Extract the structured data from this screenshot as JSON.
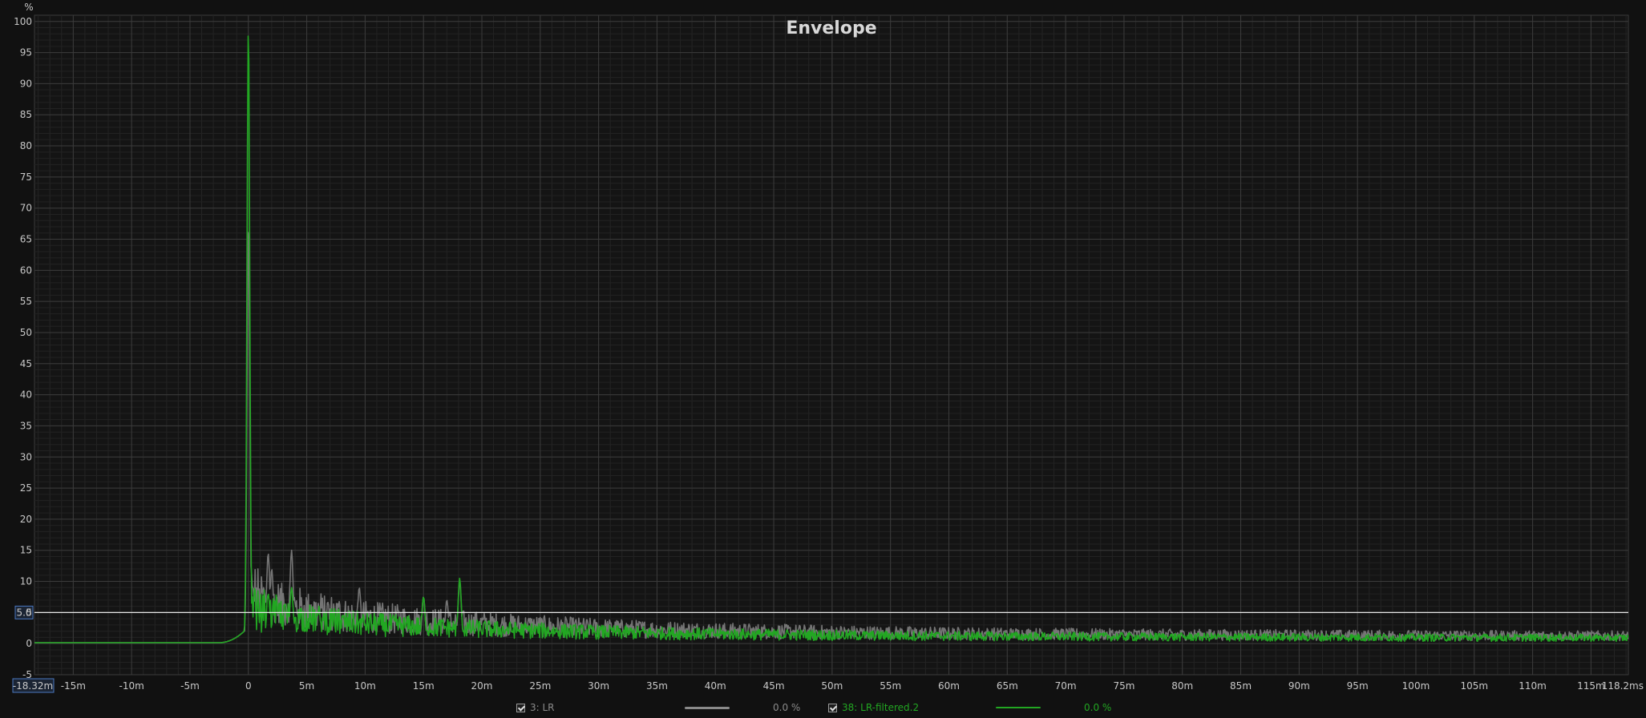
{
  "chart_data": {
    "type": "line",
    "title": "Envelope",
    "ylabel": "%",
    "xlabel": "",
    "xlim": [
      -0.01832,
      0.1182
    ],
    "ylim": [
      -5,
      101
    ],
    "x_ticks": [
      "-15m",
      "-10m",
      "-5m",
      "0",
      "5m",
      "10m",
      "15m",
      "20m",
      "25m",
      "30m",
      "35m",
      "40m",
      "45m",
      "50m",
      "55m",
      "60m",
      "65m",
      "70m",
      "75m",
      "80m",
      "85m",
      "90m",
      "95m",
      "100m",
      "105m",
      "110m",
      "115m"
    ],
    "x_tick_values": [
      -0.015,
      -0.01,
      -0.005,
      0,
      0.005,
      0.01,
      0.015,
      0.02,
      0.025,
      0.03,
      0.035,
      0.04,
      0.045,
      0.05,
      0.055,
      0.06,
      0.065,
      0.07,
      0.075,
      0.08,
      0.085,
      0.09,
      0.095,
      0.1,
      0.105,
      0.11,
      0.115
    ],
    "x_start_label": "-18.32m",
    "x_end_label": "118.2ms",
    "y_ticks": [
      100,
      95,
      90,
      85,
      80,
      75,
      70,
      65,
      60,
      55,
      50,
      45,
      40,
      35,
      30,
      25,
      20,
      15,
      10,
      5,
      0,
      -5
    ],
    "cursor_level": 5.0,
    "cursor_label": "5.0",
    "grid": true,
    "series": [
      {
        "name": "3: LR",
        "color": "#7a7a7a",
        "peaks": [
          {
            "x": 0.0,
            "y": 67
          },
          {
            "x": 0.0017,
            "y": 14.5
          },
          {
            "x": 0.002,
            "y": 12
          },
          {
            "x": 0.0037,
            "y": 15
          },
          {
            "x": 0.0095,
            "y": 9
          },
          {
            "x": 0.015,
            "y": 7.5
          },
          {
            "x": 0.017,
            "y": 7
          },
          {
            "x": 0.0181,
            "y": 10
          }
        ]
      },
      {
        "name": "38: LR-filtered.2",
        "color": "#22a722",
        "peaks": [
          {
            "x": 0.0,
            "y": 99
          },
          {
            "x": 0.0017,
            "y": 8
          },
          {
            "x": 0.0037,
            "y": 9
          },
          {
            "x": 0.015,
            "y": 7.5
          },
          {
            "x": 0.0181,
            "y": 10.5
          }
        ]
      }
    ]
  },
  "legend": {
    "items": [
      {
        "label": "3: LR",
        "value": "0.0 %",
        "color": "#8a8a8a",
        "checked": true
      },
      {
        "label": "38: LR-filtered.2",
        "value": "0.0 %",
        "color": "#22a722",
        "checked": true
      }
    ]
  }
}
